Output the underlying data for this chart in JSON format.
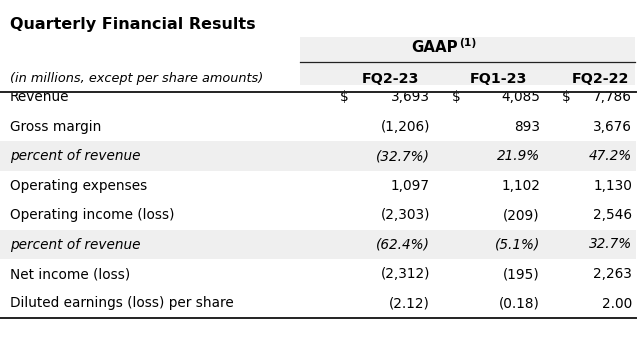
{
  "title": "Quarterly Financial Results",
  "subtitle": "(in millions, except per share amounts)",
  "columns": [
    "FQ2-23",
    "FQ1-23",
    "FQ2-22"
  ],
  "rows": [
    {
      "label": "Revenue",
      "italic": false,
      "show_dollar": true,
      "values": [
        "3,693",
        "4,085",
        "7,786"
      ]
    },
    {
      "label": "Gross margin",
      "italic": false,
      "show_dollar": false,
      "values": [
        "(1,206)",
        "893",
        "3,676"
      ]
    },
    {
      "label": "percent of revenue",
      "italic": true,
      "show_dollar": false,
      "values": [
        "(32.7%)",
        "21.9%",
        "47.2%"
      ]
    },
    {
      "label": "Operating expenses",
      "italic": false,
      "show_dollar": false,
      "values": [
        "1,097",
        "1,102",
        "1,130"
      ]
    },
    {
      "label": "Operating income (loss)",
      "italic": false,
      "show_dollar": false,
      "values": [
        "(2,303)",
        "(209)",
        "2,546"
      ]
    },
    {
      "label": "percent of revenue",
      "italic": true,
      "show_dollar": false,
      "values": [
        "(62.4%)",
        "(5.1%)",
        "32.7%"
      ]
    },
    {
      "label": "Net income (loss)",
      "italic": false,
      "show_dollar": false,
      "values": [
        "(2,312)",
        "(195)",
        "2,263"
      ]
    },
    {
      "label": "Diluted earnings (loss) per share",
      "italic": false,
      "show_dollar": false,
      "values": [
        "(2.12)",
        "(0.18)",
        "2.00"
      ]
    }
  ],
  "bg_color": "#ffffff",
  "stripe_color": "#efefef",
  "line_color": "#222222",
  "text_color": "#000000",
  "font_size": 9.8,
  "title_font_size": 11.5
}
